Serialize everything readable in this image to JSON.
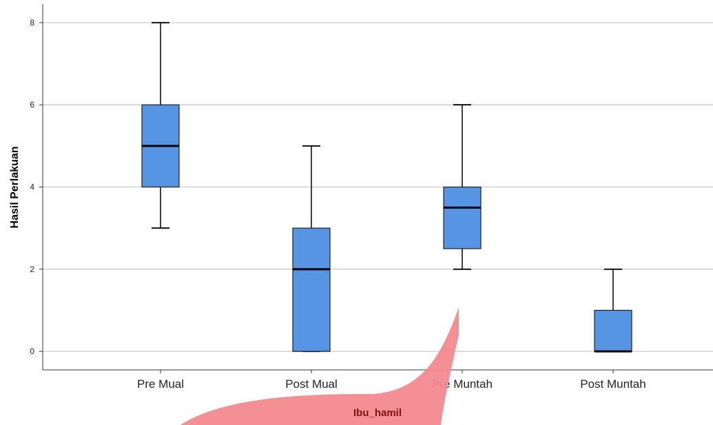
{
  "chart_data": {
    "type": "box",
    "categories": [
      "Pre Mual",
      "Post Mual",
      "Pre Muntah",
      "Post Muntah"
    ],
    "boxes": [
      {
        "category": "Pre Mual",
        "min": 3,
        "q1": 4,
        "median": 5,
        "q3": 6,
        "max": 8
      },
      {
        "category": "Post Mual",
        "min": 0,
        "q1": 0,
        "median": 2,
        "q3": 3,
        "max": 5
      },
      {
        "category": "Pre Muntah",
        "min": 2,
        "q1": 2.5,
        "median": 3.5,
        "q3": 4,
        "max": 6
      },
      {
        "category": "Post Muntah",
        "min": 0,
        "q1": 0,
        "median": 0,
        "q3": 1,
        "max": 2
      }
    ],
    "xlabel": "Ibu_hamil",
    "ylabel": "Hasil Perlakuan",
    "ylim": [
      -0.45,
      8.45
    ],
    "yticks": [
      "0",
      "2",
      "4",
      "6",
      "8"
    ],
    "grid": true,
    "colors": {
      "box_fill": "#5595e3",
      "box_stroke": "#1f1f1f",
      "grid": "#c8c8c8",
      "overlay": "#f28a8f"
    }
  }
}
